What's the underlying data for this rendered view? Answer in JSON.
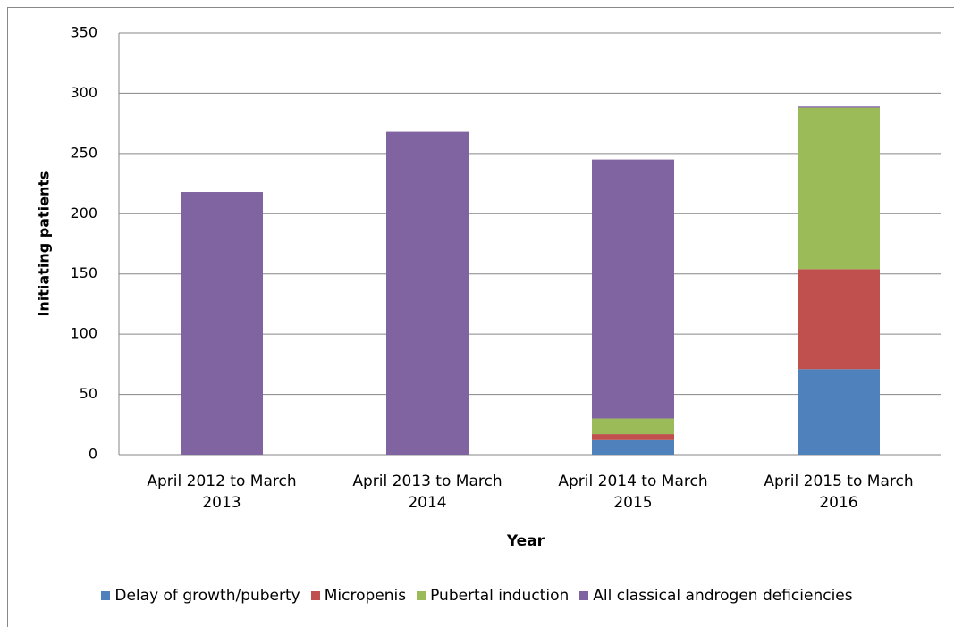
{
  "chart_data": {
    "type": "stacked_bar",
    "categories": [
      "April 2012 to March 2013",
      "April 2013 to March 2014",
      "April 2014 to March 2015",
      "April 2015 to March 2016"
    ],
    "series": [
      {
        "name": "Delay of growth/puberty",
        "color": "#4f81bd",
        "values": [
          0,
          0,
          12,
          71
        ]
      },
      {
        "name": "Micropenis",
        "color": "#c0504d",
        "values": [
          0,
          0,
          5,
          83
        ]
      },
      {
        "name": "Pubertal induction",
        "color": "#9bbb59",
        "values": [
          0,
          0,
          13,
          134
        ]
      },
      {
        "name": "All classical androgen deficiencies",
        "color": "#8064a2",
        "values": [
          218,
          268,
          215,
          1
        ]
      }
    ],
    "x_label": "Year",
    "y_label": "Initiating patients",
    "ylim": [
      0,
      350
    ],
    "yticks": [
      0,
      50,
      100,
      150,
      200,
      250,
      300,
      350
    ],
    "grid": true,
    "legend": "bottom"
  }
}
